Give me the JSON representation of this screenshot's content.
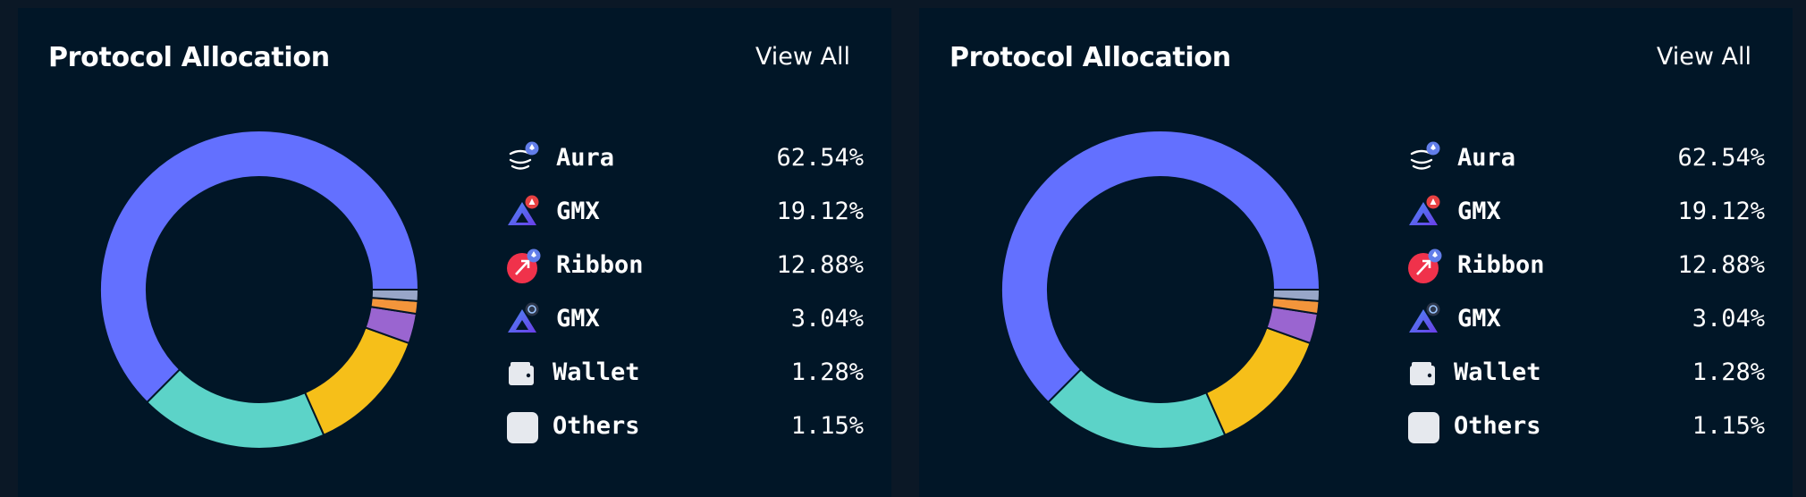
{
  "panels": [
    {
      "title": "Protocol Allocation",
      "view_all": "View All",
      "legend": [
        {
          "label": "Aura",
          "value": "62.54%",
          "icon": "aura-icon"
        },
        {
          "label": "GMX",
          "value": "19.12%",
          "icon": "gmx-icon"
        },
        {
          "label": "Ribbon",
          "value": "12.88%",
          "icon": "ribbon-icon"
        },
        {
          "label": "GMX",
          "value": "3.04%",
          "icon": "gmx-icon"
        },
        {
          "label": "Wallet",
          "value": "1.28%",
          "icon": "wallet-icon"
        },
        {
          "label": "Others",
          "value": "1.15%",
          "icon": "others-icon"
        }
      ]
    },
    {
      "title": "Protocol Allocation",
      "view_all": "View All",
      "legend": [
        {
          "label": "Aura",
          "value": "62.54%",
          "icon": "aura-icon"
        },
        {
          "label": "GMX",
          "value": "19.12%",
          "icon": "gmx-icon"
        },
        {
          "label": "Ribbon",
          "value": "12.88%",
          "icon": "ribbon-icon"
        },
        {
          "label": "GMX",
          "value": "3.04%",
          "icon": "gmx-icon"
        },
        {
          "label": "Wallet",
          "value": "1.28%",
          "icon": "wallet-icon"
        },
        {
          "label": "Others",
          "value": "1.15%",
          "icon": "others-icon"
        }
      ]
    }
  ],
  "chart_data": [
    {
      "type": "pie",
      "title": "Protocol Allocation",
      "categories": [
        "Aura",
        "GMX",
        "Ribbon",
        "GMX",
        "Wallet",
        "Others"
      ],
      "values": [
        62.54,
        19.12,
        12.88,
        3.04,
        1.28,
        1.15
      ],
      "colors": [
        "#6370ff",
        "#5cd3c8",
        "#f6bf19",
        "#9a65d0",
        "#f3953b",
        "#98a6c8"
      ]
    },
    {
      "type": "pie",
      "title": "Protocol Allocation",
      "categories": [
        "Aura",
        "GMX",
        "Ribbon",
        "GMX",
        "Wallet",
        "Others"
      ],
      "values": [
        62.54,
        19.12,
        12.88,
        3.04,
        1.28,
        1.15
      ],
      "colors": [
        "#6370ff",
        "#5cd3c8",
        "#f6bf19",
        "#9a65d0",
        "#f3953b",
        "#98a6c8"
      ]
    }
  ]
}
